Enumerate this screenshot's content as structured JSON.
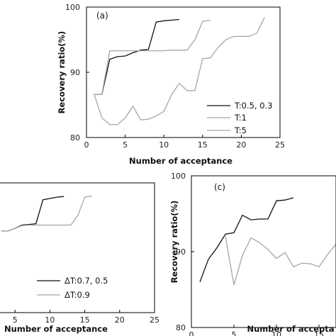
{
  "colors": {
    "dark": "#111111",
    "light": "#a6a6a6",
    "frame": "#000000"
  },
  "chart_data": [
    {
      "type": "line",
      "panel_label": "(a)",
      "xlabel": "Number of acceptance",
      "ylabel": "Recovery ratio(%)",
      "xlim": [
        0,
        25
      ],
      "ylim": [
        80,
        100
      ],
      "xticks": [
        "0",
        "5",
        "10",
        "15",
        "20",
        "25"
      ],
      "yticks": [
        "80",
        "90",
        "100"
      ],
      "legend_position": "bottom-right",
      "series": [
        {
          "name": "T:0.5, 0.3",
          "color": "#111111",
          "x": [
            1,
            2,
            3,
            4,
            5,
            6,
            7,
            8,
            9,
            10,
            11,
            12
          ],
          "y": [
            86.6,
            86.6,
            92.0,
            92.4,
            92.5,
            93.0,
            93.4,
            93.5,
            97.7,
            97.9,
            98.0,
            98.1
          ]
        },
        {
          "name": "T:1",
          "color": "#a6a6a6",
          "x": [
            1,
            2,
            3,
            4,
            5,
            6,
            7,
            8,
            9,
            10,
            11,
            12,
            13,
            14,
            15,
            16
          ],
          "y": [
            86.6,
            86.6,
            93.3,
            93.3,
            93.3,
            93.3,
            93.3,
            93.3,
            93.3,
            93.3,
            93.4,
            93.4,
            93.4,
            95.0,
            97.8,
            98.0
          ]
        },
        {
          "name": "T:5",
          "color": "#a6a6a6",
          "x": [
            1,
            2,
            3,
            4,
            5,
            6,
            7,
            8,
            9,
            10,
            11,
            12,
            13,
            14,
            15,
            16,
            17,
            18,
            19,
            20,
            21,
            22,
            23
          ],
          "y": [
            86.6,
            83.0,
            82.0,
            82.0,
            83.0,
            84.8,
            82.7,
            82.8,
            83.3,
            84.0,
            86.6,
            88.3,
            87.2,
            87.2,
            92.1,
            92.2,
            93.8,
            95.0,
            95.5,
            95.5,
            95.5,
            96.0,
            98.4
          ]
        }
      ]
    },
    {
      "type": "line",
      "panel_label": "",
      "xlabel": "Number of acceptance",
      "ylabel": "",
      "xlim": [
        0,
        25
      ],
      "ylim": [
        80,
        100
      ],
      "xticks": [
        "5",
        "10",
        "15",
        "20",
        "25"
      ],
      "yticks": [],
      "legend_position": "bottom-right",
      "series": [
        {
          "name": "ΔT:0.7, 0.5",
          "color": "#111111",
          "x": [
            3,
            4,
            5,
            6,
            7,
            8,
            9,
            10,
            11,
            12
          ],
          "y": [
            92.6,
            92.6,
            93.0,
            93.5,
            93.6,
            93.7,
            97.4,
            97.6,
            97.8,
            97.9
          ]
        },
        {
          "name": "ΔT:0.9",
          "color": "#a6a6a6",
          "x": [
            3,
            4,
            5,
            6,
            7,
            8,
            9,
            10,
            11,
            12,
            13,
            14,
            15,
            16
          ],
          "y": [
            92.6,
            92.6,
            93.0,
            93.4,
            93.5,
            93.5,
            93.5,
            93.5,
            93.5,
            93.5,
            93.5,
            95.0,
            97.8,
            98.0
          ]
        }
      ]
    },
    {
      "type": "line",
      "panel_label": "(c)",
      "xlabel": "Number of accepta",
      "ylabel": "Recovery ratio(%)",
      "xlim": [
        0,
        17
      ],
      "ylim": [
        80,
        100
      ],
      "xticks": [
        "0",
        "5",
        "10",
        "15"
      ],
      "yticks": [
        "80",
        "90",
        "100"
      ],
      "legend_position": "",
      "series": [
        {
          "name": "",
          "color": "#111111",
          "x": [
            1,
            2,
            3,
            4,
            5,
            6,
            7,
            8,
            9,
            10,
            11,
            12
          ],
          "y": [
            86.0,
            89.0,
            90.5,
            92.3,
            92.5,
            94.8,
            94.2,
            94.3,
            94.3,
            96.7,
            96.8,
            97.1
          ]
        },
        {
          "name": "",
          "color": "#a6a6a6",
          "x": [
            4,
            5,
            6,
            7,
            8,
            9,
            10,
            11,
            12,
            13,
            14,
            15,
            16,
            17
          ],
          "y": [
            92.0,
            85.6,
            89.5,
            91.8,
            91.2,
            90.3,
            89.1,
            89.9,
            88.0,
            88.5,
            88.4,
            88.0,
            89.6,
            91.0
          ]
        }
      ]
    }
  ]
}
